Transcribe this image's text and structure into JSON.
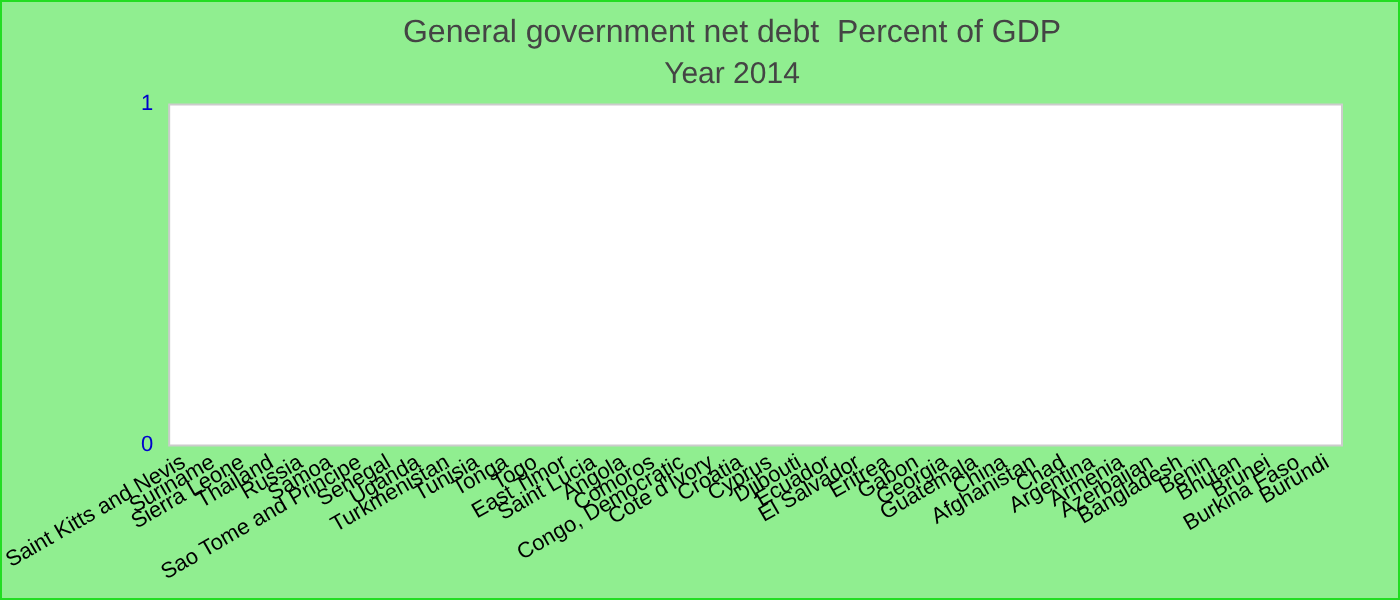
{
  "chart_data": {
    "type": "bar",
    "title": "General government net debt  Percent of GDP",
    "subtitle": "Year 2014",
    "categories": [
      "Saint Kitts and Nevis",
      "Suriname",
      "Sierra Leone",
      "Thailand",
      "Russia",
      "Samoa",
      "Sao Tome and Principe",
      "Senegal",
      "Uganda",
      "Turkmenistan",
      "Tunisia",
      "Tonga",
      "Togo",
      "East Timor",
      "Saint Lucia",
      "Angola",
      "Comoros",
      "Congo, Democratic",
      "Cote d'Ivory",
      "Croatia",
      "Cyprus",
      "Djibouti",
      "Ecuador",
      "El Salvador",
      "Eritrea",
      "Gabon",
      "Georgia",
      "Guatemala",
      "China",
      "Afghanistan",
      "Chad",
      "Argentina",
      "Armenia",
      "Azerbaijan",
      "Bangladesh",
      "Benin",
      "Bhutan",
      "Brunei",
      "Burkina Faso",
      "Burundi"
    ],
    "values": [
      null,
      null,
      null,
      null,
      null,
      null,
      null,
      null,
      null,
      null,
      null,
      null,
      null,
      null,
      null,
      null,
      null,
      null,
      null,
      null,
      null,
      null,
      null,
      null,
      null,
      null,
      null,
      null,
      null,
      null,
      null,
      null,
      null,
      null,
      null,
      null,
      null,
      null,
      null,
      null
    ],
    "ylim": [
      0,
      1
    ],
    "yticks": [
      0,
      1
    ],
    "grid": false,
    "legend": false
  }
}
